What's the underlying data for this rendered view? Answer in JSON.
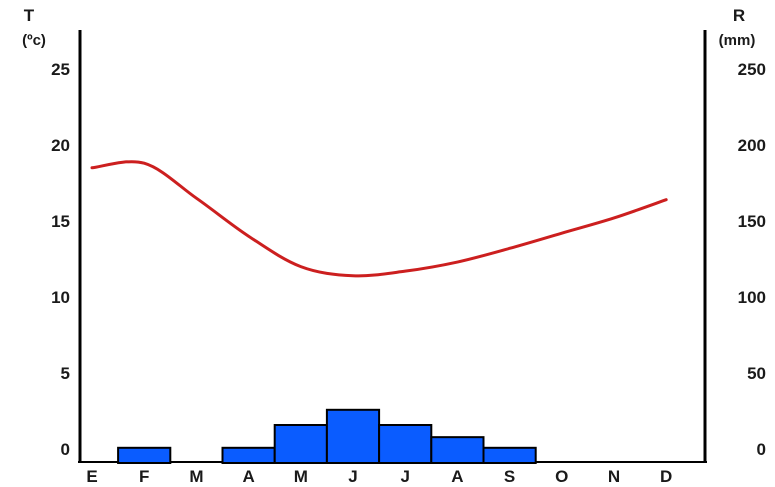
{
  "chart_data": {
    "type": "bar+line",
    "categories": [
      "E",
      "F",
      "M",
      "A",
      "M",
      "J",
      "J",
      "A",
      "S",
      "O",
      "N",
      "D"
    ],
    "temperature": {
      "axis_title": "T",
      "axis_unit": "(ºc)",
      "values": [
        18.5,
        18.8,
        16.5,
        14.0,
        12.0,
        11.4,
        11.7,
        12.3,
        13.2,
        14.2,
        15.2,
        16.4
      ],
      "ylim": [
        0,
        25
      ],
      "ticks": [
        0,
        5,
        10,
        15,
        20,
        25
      ],
      "color": "#cc1f1f"
    },
    "precipitation": {
      "axis_title": "R",
      "axis_unit": "(mm)",
      "values": [
        0,
        10,
        0,
        10,
        25,
        35,
        25,
        17,
        10,
        0,
        0,
        0
      ],
      "ylim": [
        0,
        250
      ],
      "ticks": [
        0,
        50,
        100,
        150,
        200,
        250
      ],
      "color": "#0a5cff"
    },
    "grid": false
  }
}
